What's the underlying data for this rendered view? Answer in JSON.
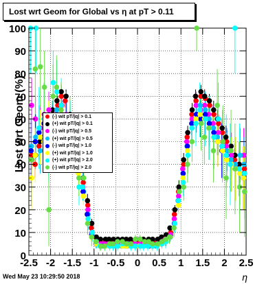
{
  "header": {
    "title": "Lost wrt Geom for Global vs   η at pT > 0.11"
  },
  "footer": {
    "timestamp": "Wed May 23 10:29:50 2018"
  },
  "axes": {
    "xlabel": "η",
    "ylabel": "Lost  wrt  Geom (%)"
  },
  "legend": {
    "entries": [
      {
        "label": "(-) wit pT/|q| > 0.1",
        "color": "#ff0000"
      },
      {
        "label": "(+) wit pT/|q| > 0.1",
        "color": "#000000"
      },
      {
        "label": "(-) wit pT/|q| > 0.5",
        "color": "#ff00ff"
      },
      {
        "label": "(+) wit pT/|q| > 0.5",
        "color": "#00c0ff"
      },
      {
        "label": "(-) wit pT/|q| > 1.0",
        "color": "#0000ff"
      },
      {
        "label": "(+) wit pT/|q| > 1.0",
        "color": "#ffff00"
      },
      {
        "label": "(+) wit pT/|q| > 2.0",
        "color": "#00ffff"
      },
      {
        "label": "(-) wit pT/|q| > 2.0",
        "color": "#66dd44"
      }
    ]
  },
  "chart_data": {
    "type": "scatter",
    "title": "Lost wrt Geom for Global vs   η at pT > 0.11",
    "xlabel": "η",
    "ylabel": "Lost  wrt  Geom (%)",
    "xlim": [
      -2.5,
      2.5
    ],
    "ylim": [
      0,
      100
    ],
    "xticks": [
      -2.5,
      -2,
      -1.5,
      -1,
      -0.5,
      0,
      0.5,
      1,
      1.5,
      2,
      2.5
    ],
    "xtick_labels": [
      "-2.5",
      "-2",
      "-1.5",
      "-1",
      "-0.5",
      "0",
      "0.5",
      "1",
      "1.5",
      "2",
      "2.5"
    ],
    "yticks": [
      0,
      10,
      20,
      30,
      40,
      50,
      60,
      70,
      80,
      90,
      100
    ],
    "ytick_labels": [
      "0",
      "10",
      "20",
      "30",
      "40",
      "50",
      "60",
      "70",
      "80",
      "90",
      "100"
    ],
    "grid": true,
    "legend_position": "left",
    "x": [
      -2.45,
      -2.35,
      -2.25,
      -2.15,
      -2.05,
      -1.95,
      -1.85,
      -1.75,
      -1.65,
      -1.55,
      -1.45,
      -1.35,
      -1.25,
      -1.15,
      -1.05,
      -0.95,
      -0.85,
      -0.75,
      -0.65,
      -0.55,
      -0.45,
      -0.35,
      -0.25,
      -0.15,
      -0.05,
      0.05,
      0.15,
      0.25,
      0.35,
      0.45,
      0.55,
      0.65,
      0.75,
      0.85,
      0.95,
      1.05,
      1.15,
      1.25,
      1.35,
      1.45,
      1.55,
      1.65,
      1.75,
      1.85,
      1.95,
      2.05,
      2.15,
      2.25,
      2.35,
      2.45
    ],
    "series": [
      {
        "name": "(-) wit pT/|q| > 0.1",
        "color": "#ff0000",
        "values": [
          44,
          40,
          48,
          52,
          56,
          62,
          66,
          70,
          68,
          60,
          52,
          42,
          32,
          22,
          12,
          7,
          6,
          6,
          6,
          6,
          6,
          6,
          6,
          6,
          6,
          6,
          6,
          6,
          6,
          6,
          7,
          8,
          10,
          18,
          28,
          40,
          52,
          62,
          68,
          70,
          69,
          66,
          62,
          58,
          54,
          50,
          46,
          42,
          40,
          38
        ],
        "errors": [
          6,
          6,
          6,
          5,
          5,
          4,
          4,
          3,
          3,
          3,
          3,
          3,
          3,
          3,
          2,
          2,
          1,
          1,
          1,
          1,
          1,
          1,
          1,
          1,
          1,
          1,
          1,
          1,
          1,
          1,
          1,
          1,
          2,
          2,
          3,
          3,
          3,
          3,
          3,
          3,
          3,
          3,
          4,
          4,
          4,
          5,
          5,
          5,
          6,
          6
        ]
      },
      {
        "name": "(+) wit pT/|q| > 0.1",
        "color": "#000000",
        "values": [
          42,
          44,
          50,
          56,
          60,
          64,
          68,
          72,
          70,
          62,
          54,
          44,
          34,
          24,
          14,
          8,
          7,
          7,
          7,
          7,
          7,
          7,
          7,
          7,
          7,
          7,
          7,
          7,
          7,
          7,
          8,
          9,
          12,
          20,
          30,
          42,
          54,
          64,
          70,
          72,
          70,
          68,
          64,
          60,
          56,
          52,
          48,
          44,
          40,
          36
        ],
        "errors": [
          6,
          6,
          5,
          5,
          5,
          4,
          4,
          3,
          3,
          3,
          3,
          3,
          3,
          3,
          2,
          1,
          1,
          1,
          1,
          1,
          1,
          1,
          1,
          1,
          1,
          1,
          1,
          1,
          1,
          1,
          1,
          1,
          1,
          2,
          3,
          3,
          3,
          3,
          3,
          3,
          3,
          3,
          4,
          4,
          4,
          5,
          5,
          5,
          6,
          6
        ]
      },
      {
        "name": "(-) wit pT/|q| > 0.5",
        "color": "#ff00ff",
        "values": [
          66,
          60,
          56,
          62,
          64,
          58,
          62,
          66,
          62,
          58,
          50,
          40,
          30,
          20,
          10,
          6,
          5,
          5,
          5,
          5,
          5,
          5,
          5,
          5,
          5,
          5,
          5,
          5,
          5,
          5,
          6,
          7,
          9,
          16,
          26,
          38,
          50,
          60,
          66,
          64,
          66,
          62,
          58,
          54,
          50,
          48,
          44,
          40,
          38,
          44
        ],
        "errors": [
          12,
          10,
          10,
          9,
          8,
          8,
          7,
          6,
          6,
          5,
          5,
          4,
          4,
          3,
          2,
          2,
          1,
          1,
          1,
          1,
          1,
          1,
          1,
          1,
          1,
          1,
          1,
          1,
          1,
          1,
          1,
          2,
          2,
          3,
          4,
          4,
          5,
          5,
          6,
          6,
          6,
          7,
          8,
          8,
          9,
          9,
          10,
          10,
          12,
          12
        ]
      },
      {
        "name": "(+) wit pT/|q| > 0.5",
        "color": "#00c0ff",
        "values": [
          48,
          52,
          46,
          58,
          54,
          60,
          64,
          62,
          58,
          56,
          46,
          38,
          28,
          18,
          9,
          5,
          4,
          4,
          4,
          4,
          4,
          4,
          4,
          4,
          4,
          4,
          4,
          4,
          4,
          4,
          5,
          6,
          8,
          14,
          24,
          36,
          48,
          58,
          62,
          66,
          64,
          60,
          56,
          52,
          48,
          46,
          42,
          40,
          44,
          40
        ],
        "errors": [
          12,
          10,
          10,
          9,
          8,
          8,
          7,
          6,
          6,
          5,
          5,
          4,
          4,
          3,
          2,
          2,
          1,
          1,
          1,
          1,
          1,
          1,
          1,
          1,
          1,
          1,
          1,
          1,
          1,
          1,
          1,
          2,
          2,
          3,
          4,
          4,
          5,
          5,
          6,
          6,
          6,
          7,
          8,
          8,
          9,
          9,
          10,
          10,
          12,
          12
        ]
      },
      {
        "name": "(-) wit pT/|q| > 1.0",
        "color": "#0000ff",
        "values": [
          46,
          50,
          54,
          58,
          52,
          56,
          60,
          64,
          60,
          54,
          48,
          38,
          28,
          18,
          9,
          5,
          4,
          4,
          4,
          4,
          4,
          4,
          4,
          4,
          4,
          4,
          4,
          4,
          4,
          4,
          5,
          6,
          8,
          14,
          24,
          36,
          48,
          58,
          62,
          60,
          62,
          58,
          54,
          50,
          46,
          44,
          40,
          38,
          36,
          34
        ],
        "errors": [
          14,
          12,
          12,
          11,
          10,
          10,
          9,
          8,
          8,
          7,
          6,
          5,
          4,
          3,
          2,
          2,
          1,
          1,
          1,
          1,
          1,
          1,
          1,
          1,
          1,
          1,
          1,
          1,
          1,
          1,
          1,
          2,
          2,
          3,
          4,
          5,
          6,
          7,
          8,
          8,
          9,
          10,
          10,
          11,
          12,
          12,
          12,
          14,
          14,
          14
        ]
      },
      {
        "name": "(+) wit pT/|q| > 1.0",
        "color": "#ffff00",
        "values": [
          34,
          44,
          52,
          50,
          58,
          54,
          60,
          62,
          58,
          52,
          44,
          36,
          26,
          16,
          8,
          5,
          4,
          4,
          4,
          4,
          4,
          4,
          4,
          4,
          4,
          4,
          4,
          4,
          4,
          4,
          5,
          6,
          8,
          14,
          22,
          34,
          46,
          56,
          60,
          62,
          60,
          56,
          52,
          50,
          46,
          42,
          40,
          38,
          36,
          34
        ],
        "errors": [
          14,
          12,
          12,
          11,
          10,
          10,
          9,
          8,
          8,
          7,
          6,
          5,
          4,
          3,
          2,
          2,
          1,
          1,
          1,
          1,
          1,
          1,
          1,
          1,
          1,
          1,
          1,
          1,
          1,
          1,
          1,
          2,
          2,
          3,
          4,
          5,
          6,
          7,
          8,
          8,
          9,
          10,
          10,
          11,
          12,
          12,
          12,
          14,
          14,
          14
        ]
      },
      {
        "name": "(+) wit pT/|q| > 2.0",
        "color": "#00ffff",
        "values": [
          100,
          100,
          56,
          60,
          48,
          76,
          72,
          66,
          60,
          58,
          52,
          30,
          30,
          16,
          10,
          6,
          4,
          4,
          4,
          4,
          4,
          5,
          5,
          4,
          4,
          4,
          4,
          4,
          4,
          4,
          5,
          6,
          8,
          14,
          24,
          32,
          44,
          56,
          58,
          64,
          60,
          56,
          52,
          60,
          48,
          44,
          40,
          100,
          38,
          36
        ],
        "errors": [
          20,
          20,
          18,
          16,
          16,
          14,
          14,
          12,
          12,
          10,
          9,
          8,
          6,
          5,
          4,
          3,
          2,
          2,
          2,
          2,
          2,
          2,
          2,
          2,
          2,
          2,
          2,
          2,
          2,
          2,
          2,
          3,
          3,
          4,
          5,
          6,
          8,
          9,
          10,
          12,
          12,
          14,
          14,
          16,
          16,
          18,
          18,
          20,
          20,
          20
        ]
      },
      {
        "name": "(-) wit pT/|q| > 2.0",
        "color": "#66dd44",
        "values": [
          42,
          82,
          83,
          74,
          20,
          70,
          74,
          64,
          56,
          60,
          48,
          34,
          34,
          14,
          8,
          6,
          4,
          4,
          5,
          5,
          6,
          6,
          5,
          5,
          7,
          7,
          6,
          6,
          5,
          5,
          6,
          7,
          8,
          12,
          28,
          30,
          40,
          50,
          100,
          58,
          52,
          56,
          46,
          66,
          50,
          34,
          46,
          38,
          30,
          28
        ],
        "errors": [
          20,
          20,
          18,
          16,
          16,
          14,
          14,
          12,
          12,
          10,
          9,
          8,
          6,
          5,
          4,
          3,
          2,
          2,
          2,
          2,
          2,
          2,
          2,
          2,
          2,
          2,
          2,
          2,
          2,
          2,
          2,
          3,
          3,
          4,
          5,
          6,
          8,
          9,
          10,
          12,
          12,
          14,
          14,
          16,
          16,
          18,
          18,
          20,
          20,
          20
        ]
      }
    ]
  }
}
